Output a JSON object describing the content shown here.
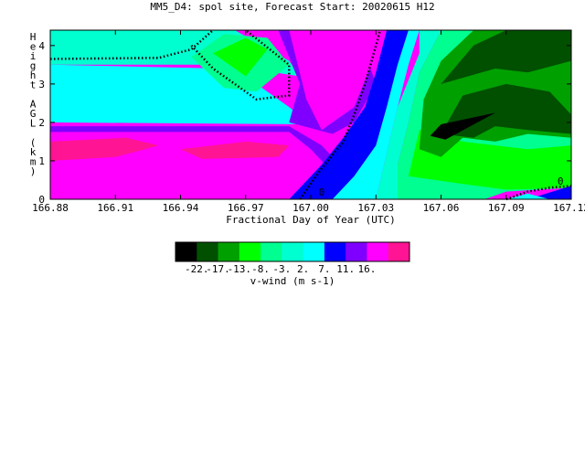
{
  "chart_data": {
    "type": "heatmap",
    "title": "MM5_D4: spol site,  Forecast Start: 20020615 H12",
    "xlabel": "Fractional Day of Year (UTC)",
    "ylabel": "Height AGL (km)",
    "xlim": [
      166.88,
      167.12
    ],
    "ylim": [
      0,
      4.4
    ],
    "x_ticks": [
      "166.88",
      "166.91",
      "166.94",
      "166.97",
      "167.00",
      "167.03",
      "167.06",
      "167.09",
      "167.12"
    ],
    "y_ticks": [
      "0",
      "1",
      "2",
      "3",
      "4"
    ],
    "colorbar": {
      "label": "v-wind (m s-1)",
      "tick_labels": [
        "-22.",
        "-17.",
        "-13.",
        "-8.",
        "-3.",
        "2.",
        "7.",
        "11.",
        "16."
      ],
      "colors": [
        "#000000",
        "#005000",
        "#00a000",
        "#00ff00",
        "#00ff90",
        "#00ffd0",
        "#00ffff",
        "#0000ff",
        "#8000ff",
        "#ff00ff",
        "#ff1493"
      ]
    },
    "contour_labels": [
      "0",
      "0"
    ],
    "regions": [
      {
        "level": 8,
        "points": [
          [
            166.88,
            0
          ],
          [
            166.88,
            1.9
          ],
          [
            166.99,
            1.9
          ],
          [
            167.005,
            1.4
          ],
          [
            167.015,
            0.8
          ],
          [
            167.02,
            0
          ]
        ]
      },
      {
        "level": 9,
        "points": [
          [
            166.88,
            0
          ],
          [
            166.88,
            1.75
          ],
          [
            166.99,
            1.75
          ],
          [
            167.0,
            1.3
          ],
          [
            167.01,
            0.7
          ],
          [
            167.015,
            0
          ]
        ]
      },
      {
        "level": 10,
        "points": [
          [
            166.88,
            1.0
          ],
          [
            166.88,
            1.5
          ],
          [
            166.915,
            1.6
          ],
          [
            166.93,
            1.4
          ],
          [
            166.91,
            1.1
          ]
        ]
      },
      {
        "level": 10,
        "points": [
          [
            166.94,
            1.3
          ],
          [
            166.97,
            1.5
          ],
          [
            166.99,
            1.4
          ],
          [
            166.985,
            1.1
          ],
          [
            166.95,
            1.05
          ]
        ]
      },
      {
        "level": 6,
        "points": [
          [
            166.88,
            2.0
          ],
          [
            166.88,
            3.5
          ],
          [
            166.96,
            3.4
          ],
          [
            166.975,
            3.0
          ],
          [
            166.99,
            2.4
          ],
          [
            167.0,
            1.95
          ]
        ]
      },
      {
        "level": 5,
        "points": [
          [
            166.88,
            3.5
          ],
          [
            166.88,
            4.4
          ],
          [
            166.965,
            4.4
          ],
          [
            166.99,
            3.6
          ],
          [
            166.995,
            3.2
          ],
          [
            166.96,
            3.5
          ]
        ]
      },
      {
        "level": 4,
        "points": [
          [
            166.945,
            3.7
          ],
          [
            166.96,
            4.3
          ],
          [
            166.98,
            4.2
          ],
          [
            166.99,
            3.5
          ],
          [
            166.975,
            2.8
          ],
          [
            166.96,
            2.9
          ]
        ]
      },
      {
        "level": 3,
        "points": [
          [
            166.955,
            3.8
          ],
          [
            166.97,
            4.2
          ],
          [
            166.98,
            3.9
          ],
          [
            166.97,
            3.2
          ]
        ]
      },
      {
        "level": 8,
        "points": [
          [
            166.985,
            4.4
          ],
          [
            167.005,
            4.4
          ],
          [
            167.025,
            3.8
          ],
          [
            167.03,
            3.0
          ],
          [
            167.02,
            2.0
          ],
          [
            167.01,
            1.7
          ],
          [
            166.99,
            2.0
          ],
          [
            166.995,
            3.0
          ]
        ]
      },
      {
        "level": 9,
        "points": [
          [
            166.99,
            4.4
          ],
          [
            167.02,
            4.4
          ],
          [
            167.03,
            3.8
          ],
          [
            167.02,
            2.4
          ],
          [
            167.005,
            1.8
          ],
          [
            166.998,
            2.6
          ]
        ]
      },
      {
        "level": 7,
        "points": [
          [
            166.99,
            0
          ],
          [
            167.005,
            0.9
          ],
          [
            167.015,
            1.6
          ],
          [
            167.025,
            2.4
          ],
          [
            167.03,
            3.3
          ],
          [
            167.035,
            4.4
          ],
          [
            167.045,
            4.4
          ],
          [
            167.04,
            3.5
          ],
          [
            167.035,
            2.4
          ],
          [
            167.03,
            1.4
          ],
          [
            167.02,
            0.6
          ],
          [
            167.01,
            0
          ]
        ]
      },
      {
        "level": 6,
        "points": [
          [
            167.01,
            0
          ],
          [
            167.02,
            0.6
          ],
          [
            167.03,
            1.4
          ],
          [
            167.035,
            2.4
          ],
          [
            167.04,
            3.5
          ],
          [
            167.045,
            4.4
          ],
          [
            167.05,
            4.4
          ],
          [
            167.045,
            3.5
          ],
          [
            167.04,
            2.4
          ],
          [
            167.035,
            1.2
          ],
          [
            167.03,
            0
          ]
        ]
      },
      {
        "level": 5,
        "points": [
          [
            167.03,
            0
          ],
          [
            167.035,
            1.2
          ],
          [
            167.04,
            2.4
          ],
          [
            167.05,
            3.8
          ],
          [
            167.05,
            4.4
          ],
          [
            167.06,
            4.4
          ],
          [
            167.05,
            3.3
          ],
          [
            167.045,
            2.0
          ],
          [
            167.04,
            0.9
          ],
          [
            167.04,
            0
          ]
        ]
      },
      {
        "level": 4,
        "points": [
          [
            167.04,
            0
          ],
          [
            167.04,
            0.9
          ],
          [
            167.045,
            2.0
          ],
          [
            167.05,
            3.3
          ],
          [
            167.06,
            4.4
          ],
          [
            167.12,
            4.4
          ],
          [
            167.12,
            0.3
          ],
          [
            167.09,
            0.2
          ],
          [
            167.08,
            0
          ]
        ]
      },
      {
        "level": 3,
        "points": [
          [
            167.045,
            0.6
          ],
          [
            167.05,
            1.8
          ],
          [
            167.07,
            1.5
          ],
          [
            167.1,
            1.3
          ],
          [
            167.12,
            1.4
          ],
          [
            167.12,
            0.3
          ],
          [
            167.09,
            0.25
          ],
          [
            167.07,
            0.4
          ]
        ]
      },
      {
        "level": 2,
        "points": [
          [
            167.05,
            1.3
          ],
          [
            167.052,
            2.6
          ],
          [
            167.06,
            3.6
          ],
          [
            167.075,
            4.4
          ],
          [
            167.12,
            4.4
          ],
          [
            167.12,
            1.6
          ],
          [
            167.1,
            1.7
          ],
          [
            167.085,
            1.5
          ],
          [
            167.07,
            1.6
          ],
          [
            167.06,
            1.1
          ]
        ]
      },
      {
        "level": 1,
        "points": [
          [
            167.06,
            1.7
          ],
          [
            167.07,
            2.7
          ],
          [
            167.09,
            3.0
          ],
          [
            167.11,
            2.8
          ],
          [
            167.12,
            2.2
          ],
          [
            167.12,
            1.7
          ],
          [
            167.1,
            1.8
          ],
          [
            167.085,
            1.9
          ],
          [
            167.075,
            1.6
          ]
        ]
      },
      {
        "level": 1,
        "points": [
          [
            167.06,
            3.0
          ],
          [
            167.075,
            4.0
          ],
          [
            167.09,
            4.4
          ],
          [
            167.12,
            4.4
          ],
          [
            167.12,
            3.6
          ],
          [
            167.1,
            3.3
          ],
          [
            167.085,
            3.4
          ]
        ]
      },
      {
        "level": 0,
        "points": [
          [
            167.055,
            1.65
          ],
          [
            167.06,
            1.95
          ],
          [
            167.085,
            2.25
          ],
          [
            167.062,
            1.55
          ]
        ]
      },
      {
        "level": 7,
        "points": [
          [
            167.1,
            0
          ],
          [
            167.12,
            0.35
          ],
          [
            167.12,
            0
          ]
        ]
      },
      {
        "level": 6,
        "points": [
          [
            167.09,
            0
          ],
          [
            167.1,
            0.15
          ],
          [
            167.11,
            0
          ]
        ]
      }
    ],
    "zero_contours": [
      [
        [
          166.88,
          3.65
        ],
        [
          166.93,
          3.68
        ],
        [
          166.945,
          3.9
        ],
        [
          166.955,
          4.4
        ]
      ],
      [
        [
          166.945,
          4.0
        ],
        [
          166.955,
          3.4
        ],
        [
          166.975,
          2.6
        ],
        [
          166.99,
          2.7
        ],
        [
          166.99,
          3.5
        ],
        [
          166.97,
          4.4
        ]
      ],
      [
        [
          166.995,
          0
        ],
        [
          167.005,
          0.8
        ],
        [
          167.015,
          1.5
        ],
        [
          167.02,
          2.2
        ],
        [
          167.025,
          3.0
        ],
        [
          167.03,
          4.0
        ],
        [
          167.032,
          4.4
        ]
      ],
      [
        [
          167.09,
          0
        ],
        [
          167.1,
          0.2
        ],
        [
          167.11,
          0.3
        ],
        [
          167.12,
          0.35
        ]
      ]
    ]
  }
}
